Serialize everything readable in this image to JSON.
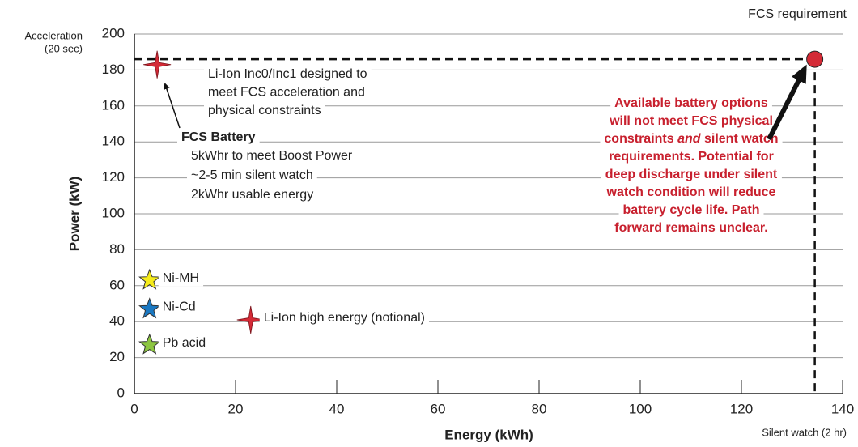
{
  "chart_data": {
    "type": "scatter",
    "xlabel": "Energy (kWh)",
    "ylabel": "Power (kW)",
    "x_end_label": "Silent watch (2 hr)",
    "y_end_label": [
      "Acceleration",
      "(20 sec)"
    ],
    "requirement_label": "FCS requirement",
    "xlim": [
      0,
      140
    ],
    "xticks": [
      0,
      20,
      40,
      60,
      80,
      100,
      120,
      140
    ],
    "ylim": [
      0,
      200
    ],
    "yticks": [
      0,
      20,
      40,
      60,
      80,
      100,
      120,
      140,
      160,
      180,
      200
    ],
    "grid": true,
    "series": [
      {
        "marker": "star4",
        "color": "#d42a36",
        "x": [
          4.5
        ],
        "values": [
          183
        ]
      },
      {
        "name": "Ni-MH",
        "marker": "star5",
        "color": "#f6ec1c",
        "x": [
          3
        ],
        "values": [
          63
        ]
      },
      {
        "name": "Ni-Cd",
        "marker": "star5",
        "color": "#1a78c2",
        "x": [
          3
        ],
        "values": [
          47
        ]
      },
      {
        "name": "Pb acid",
        "marker": "star5",
        "color": "#8cc540",
        "x": [
          3
        ],
        "values": [
          27
        ]
      },
      {
        "name": "Li-Ion high energy (notional)",
        "marker": "star4",
        "color": "#d42a36",
        "x": [
          23
        ],
        "values": [
          41
        ]
      },
      {
        "marker": "circle",
        "color": "#d42a36",
        "x": [
          134.5
        ],
        "values": [
          186
        ],
        "guides": true
      }
    ],
    "annotations": [
      {
        "lines": [
          "Li-Ion Inc0/Inc1 designed to",
          "meet FCS acceleration and",
          "physical constraints"
        ]
      },
      {
        "heading": "FCS Battery",
        "lines": [
          "5kWhr to meet Boost Power",
          "~2-5 min silent watch",
          "2kWhr usable energy"
        ]
      },
      {
        "color": "#c8202e",
        "lines": [
          "Available battery options",
          "will not meet FCS physical",
          [
            "constraints ",
            "and",
            " silent watch"
          ],
          "requirements. Potential for",
          "deep discharge under silent",
          "watch condition will reduce",
          "battery cycle life. Path",
          "forward remains unclear."
        ]
      }
    ]
  }
}
